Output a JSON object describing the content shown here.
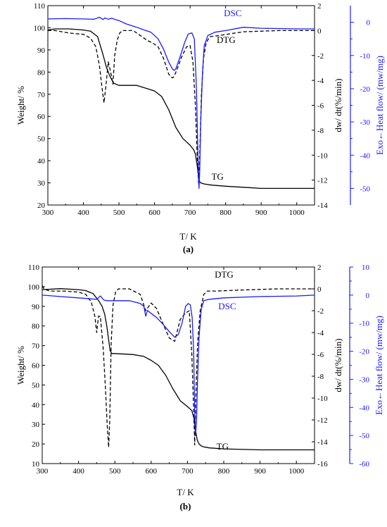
{
  "chart_data": [
    {
      "type": "line",
      "panel_label": "(a)",
      "xlabel": "T/ K",
      "ylabel": "Weight/ %",
      "y2label": "dw/ dt(%/min)",
      "y3label": "Exo←Heat flow/ (mw/mg)",
      "xlim": [
        300,
        1050
      ],
      "ylim": [
        20,
        110
      ],
      "y2lim": [
        -14,
        2
      ],
      "y3lim": [
        -55,
        5
      ],
      "x_ticks": [
        300,
        400,
        500,
        600,
        700,
        800,
        900,
        1000
      ],
      "y_ticks": [
        20,
        30,
        40,
        50,
        60,
        70,
        80,
        90,
        100,
        110
      ],
      "y2_ticks": [
        2,
        0,
        -2,
        -4,
        -6,
        -8,
        -10,
        -12,
        -14
      ],
      "y3_ticks": [
        0,
        -10,
        -20,
        -30,
        -40,
        -50
      ],
      "grid": false,
      "series": [
        {
          "name": "TG",
          "axis": "y",
          "color": "#000000",
          "style": "solid",
          "x": [
            300,
            320,
            360,
            400,
            420,
            440,
            455,
            465,
            475,
            485,
            500,
            550,
            580,
            600,
            620,
            640,
            660,
            680,
            700,
            710,
            715,
            720,
            725,
            730,
            740,
            760,
            800,
            850,
            900,
            950,
            1000,
            1050
          ],
          "y": [
            99,
            99.5,
            99.5,
            99,
            98.5,
            96,
            88,
            82,
            78,
            75,
            74,
            74,
            72.5,
            71.5,
            69,
            63,
            55,
            50,
            47,
            45,
            43,
            38,
            31,
            30,
            29.5,
            29,
            28.5,
            28,
            27.5,
            27.5,
            27.5,
            27.5
          ]
        },
        {
          "name": "DTG",
          "axis": "y2",
          "color": "#000000",
          "style": "dashed",
          "x": [
            300,
            320,
            360,
            400,
            420,
            435,
            445,
            452,
            458,
            463,
            470,
            478,
            483,
            488,
            495,
            502,
            510,
            540,
            565,
            580,
            595,
            610,
            625,
            640,
            650,
            655,
            665,
            675,
            690,
            700,
            708,
            715,
            720,
            724,
            727,
            732,
            738,
            745,
            755,
            780,
            850,
            950,
            1050
          ],
          "y": [
            0,
            0,
            -0.2,
            -0.3,
            -0.6,
            -1.3,
            -2.8,
            -4.5,
            -5.8,
            -4.5,
            -2.5,
            -3.5,
            -4.3,
            -2,
            -0.8,
            -0.2,
            0,
            0,
            -0.5,
            -0.8,
            -1.0,
            -1.3,
            -2.2,
            -3.5,
            -3.8,
            -3.7,
            -3.0,
            -2.2,
            -1.3,
            -1.2,
            -2.5,
            -6,
            -10,
            -12.3,
            -10,
            -5,
            -2.2,
            -1.0,
            -0.5,
            -0.4,
            -0.1,
            0,
            0
          ]
        },
        {
          "name": "DSC",
          "axis": "y3",
          "color": "#1a1aff",
          "style": "solid",
          "x": [
            300,
            350,
            400,
            430,
            445,
            450,
            455,
            460,
            470,
            480,
            490,
            500,
            520,
            550,
            570,
            590,
            610,
            625,
            640,
            650,
            655,
            660,
            670,
            685,
            695,
            705,
            712,
            718,
            722,
            725,
            727,
            730,
            735,
            740,
            750,
            770,
            800,
            850,
            900,
            1000,
            1050
          ],
          "y": [
            1,
            1.1,
            1,
            0.9,
            1.5,
            1.2,
            0.8,
            1.3,
            0.9,
            1.2,
            0.8,
            0.5,
            -0.5,
            -1.5,
            -2.3,
            -3,
            -5,
            -8,
            -12,
            -14,
            -14.5,
            -14,
            -11,
            -6,
            -3.5,
            -3.2,
            -5,
            -20,
            -40,
            -50,
            -45,
            -30,
            -15,
            -7,
            -4,
            -3,
            -2.5,
            -1.5,
            -1.8,
            -2,
            -2
          ]
        }
      ]
    },
    {
      "type": "line",
      "panel_label": "(b)",
      "xlabel": "T/ K",
      "ylabel": "Weight/ %",
      "y2label": "dw/ dt(%/min)",
      "y3label": "Exo←Heat flow/ (mw/mg)",
      "xlim": [
        300,
        1050
      ],
      "ylim": [
        10,
        110
      ],
      "y2lim": [
        -16,
        2
      ],
      "y3lim": [
        -60,
        10
      ],
      "x_ticks": [
        300,
        400,
        500,
        600,
        700,
        800,
        900,
        1000
      ],
      "y_ticks": [
        10,
        20,
        30,
        40,
        50,
        60,
        70,
        80,
        90,
        100,
        110
      ],
      "y2_ticks": [
        2,
        0,
        -2,
        -4,
        -6,
        -8,
        -10,
        -12,
        -14,
        -16
      ],
      "y3_ticks": [
        10,
        0,
        -10,
        -20,
        -30,
        -40,
        -50,
        -60
      ],
      "grid": false,
      "series": [
        {
          "name": "TG",
          "axis": "y",
          "color": "#000000",
          "style": "solid",
          "x": [
            300,
            350,
            400,
            420,
            440,
            455,
            465,
            472,
            478,
            483,
            487,
            492,
            500,
            550,
            580,
            600,
            620,
            640,
            660,
            680,
            700,
            712,
            718,
            722,
            727,
            732,
            738,
            745,
            760,
            800,
            900,
            1000,
            1050
          ],
          "y": [
            98.5,
            99,
            98.5,
            98,
            96.5,
            93,
            90,
            86,
            80,
            73,
            67.5,
            66,
            66,
            65.5,
            64.5,
            62.5,
            60,
            55,
            48,
            42,
            39,
            37,
            33,
            27,
            22,
            20,
            19,
            18.5,
            18,
            17.5,
            17,
            17,
            17
          ]
        },
        {
          "name": "DTG",
          "axis": "y2",
          "color": "#000000",
          "style": "dashed",
          "x": [
            300,
            305,
            320,
            360,
            400,
            420,
            435,
            445,
            450,
            455,
            460,
            468,
            474,
            479,
            483,
            486,
            490,
            495,
            502,
            510,
            540,
            570,
            585,
            600,
            615,
            630,
            650,
            665,
            680,
            695,
            705,
            712,
            717,
            720,
            723,
            728,
            735,
            745,
            755,
            780,
            850,
            950,
            1050
          ],
          "y": [
            0.3,
            0,
            -0.2,
            -0.2,
            -0.3,
            -0.5,
            -1.2,
            -2.5,
            -4,
            -2.5,
            -2.5,
            -5.5,
            -9,
            -12.5,
            -14.5,
            -12,
            -5,
            -1.5,
            -0.3,
            0,
            0,
            -0.5,
            -2,
            -1.3,
            -1.8,
            -3,
            -4.5,
            -4.8,
            -2.8,
            -2.2,
            -2.0,
            -6,
            -11,
            -14.3,
            -10,
            -5,
            -2,
            -0.5,
            -0.2,
            -0.2,
            -0.1,
            0,
            0
          ]
        },
        {
          "name": "DSC",
          "axis": "y3",
          "color": "#1a1aff",
          "style": "solid",
          "x": [
            300,
            350,
            400,
            450,
            460,
            470,
            480,
            500,
            540,
            570,
            580,
            585,
            590,
            595,
            605,
            615,
            630,
            650,
            665,
            675,
            685,
            695,
            702,
            708,
            713,
            717,
            720,
            722,
            725,
            728,
            732,
            738,
            745,
            760,
            800,
            900,
            1000,
            1050
          ],
          "y": [
            0,
            -0.5,
            -1,
            -1.5,
            -0.3,
            -1.8,
            -2,
            -2,
            -2,
            -3,
            -4,
            -7.5,
            -5.5,
            -6,
            -7,
            -8,
            -10,
            -13,
            -15,
            -14,
            -10,
            -4,
            -3,
            -3.5,
            -8,
            -20,
            -40,
            -50,
            -45,
            -30,
            -15,
            -5,
            -2,
            -1.5,
            -1,
            -0.5,
            -0.3,
            0
          ]
        }
      ]
    }
  ]
}
